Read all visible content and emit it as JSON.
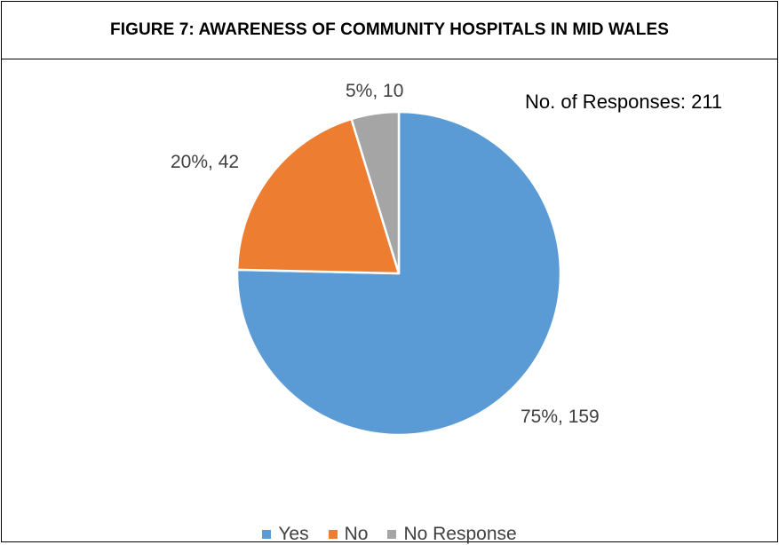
{
  "header": {
    "title": "FIGURE 7: AWARENESS OF COMMUNITY HOSPITALS IN MID WALES"
  },
  "annotation": "No. of Responses: 211",
  "chart_data": {
    "type": "pie",
    "title": "FIGURE 7: AWARENESS OF COMMUNITY HOSPITALS IN MID WALES",
    "categories": [
      "Yes",
      "No",
      "No Response"
    ],
    "values": [
      159,
      42,
      10
    ],
    "percentages": [
      75,
      20,
      5
    ],
    "data_labels": [
      "75%, 159",
      "20%, 42",
      "5%, 10"
    ],
    "colors": [
      "#5B9BD5",
      "#ED7D31",
      "#A5A5A5"
    ],
    "legend_position": "bottom",
    "start_angle": "12 o'clock",
    "direction": "clockwise"
  }
}
